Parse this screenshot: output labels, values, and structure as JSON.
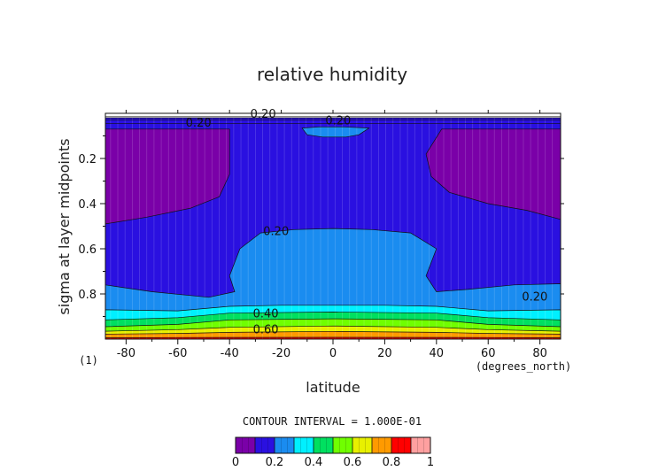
{
  "chart_data": {
    "type": "contour",
    "title": "relative humidity",
    "xlabel": "latitude",
    "ylabel": "sigma at layer midpoints",
    "xunits": "(degrees_north)",
    "yunits": "(1)",
    "xlim": [
      -88,
      88
    ],
    "ylim": [
      1.0,
      0.0
    ],
    "xticks": [
      "-80",
      "-60",
      "-40",
      "-20",
      "0",
      "20",
      "40",
      "60",
      "80"
    ],
    "xtick_values": [
      -80,
      -60,
      -40,
      -20,
      0,
      20,
      40,
      60,
      80
    ],
    "yticks": [
      "0.2",
      "0.4",
      "0.6",
      "0.8"
    ],
    "ytick_values": [
      0.2,
      0.4,
      0.6,
      0.8
    ],
    "contour_interval_text": "CONTOUR INTERVAL = 1.000E-01",
    "contour_labels": [
      {
        "text": "0.20",
        "lat": -52,
        "sigma": 0.04
      },
      {
        "text": "0.20",
        "lat": -27,
        "sigma": 0.0
      },
      {
        "text": "0.20",
        "lat": 2,
        "sigma": 0.03
      },
      {
        "text": "0.20",
        "lat": -22,
        "sigma": 0.52
      },
      {
        "text": "0.20",
        "lat": 78,
        "sigma": 0.81
      },
      {
        "text": "0.40",
        "lat": -26,
        "sigma": 0.885
      },
      {
        "text": "0.60",
        "lat": -26,
        "sigma": 0.955
      }
    ],
    "colorbar": {
      "levels": [
        0,
        0.1,
        0.2,
        0.3,
        0.4,
        0.5,
        0.6,
        0.7,
        0.8,
        0.9,
        1.0
      ],
      "colors": [
        "#7a00a8",
        "#2a10e0",
        "#1a8cf0",
        "#00f0ff",
        "#00e060",
        "#70ff00",
        "#e8f000",
        "#ff9a00",
        "#ff0000",
        "#ffa0a0"
      ],
      "tick_labels": [
        "0",
        "0.2",
        "0.4",
        "0.6",
        "0.8",
        "1"
      ],
      "tick_values": [
        0,
        0.2,
        0.4,
        0.6,
        0.8,
        1.0
      ]
    },
    "regions": [
      {
        "level": 1,
        "color": "#2a10e0",
        "poly": [
          [
            -88,
            0.02
          ],
          [
            88,
            0.02
          ],
          [
            88,
            1
          ],
          [
            -88,
            1
          ]
        ]
      },
      {
        "level": 0,
        "color": "#7a00a8",
        "poly": [
          [
            -88,
            0.07
          ],
          [
            -40,
            0.07
          ],
          [
            -40,
            0.27
          ],
          [
            -44,
            0.37
          ],
          [
            -55,
            0.42
          ],
          [
            -72,
            0.46
          ],
          [
            -88,
            0.49
          ]
        ]
      },
      {
        "level": 0,
        "color": "#7a00a8",
        "poly": [
          [
            88,
            0.07
          ],
          [
            42,
            0.07
          ],
          [
            36,
            0.18
          ],
          [
            38,
            0.28
          ],
          [
            45,
            0.35
          ],
          [
            60,
            0.4
          ],
          [
            75,
            0.43
          ],
          [
            88,
            0.47
          ]
        ]
      },
      {
        "level": 2,
        "color": "#1a8cf0",
        "poly": [
          [
            -88,
            0.76
          ],
          [
            -70,
            0.79
          ],
          [
            -48,
            0.815
          ],
          [
            -38,
            0.79
          ],
          [
            -40,
            0.72
          ],
          [
            -36,
            0.6
          ],
          [
            -28,
            0.53
          ],
          [
            -15,
            0.515
          ],
          [
            0,
            0.51
          ],
          [
            15,
            0.515
          ],
          [
            30,
            0.53
          ],
          [
            40,
            0.6
          ],
          [
            36,
            0.72
          ],
          [
            40,
            0.79
          ],
          [
            52,
            0.78
          ],
          [
            70,
            0.76
          ],
          [
            88,
            0.755
          ],
          [
            88,
            1
          ],
          [
            -88,
            1
          ]
        ]
      },
      {
        "level": 2,
        "color": "#1a8cf0",
        "poly": [
          [
            -12,
            0.065
          ],
          [
            -10,
            0.095
          ],
          [
            -4,
            0.105
          ],
          [
            5,
            0.105
          ],
          [
            10,
            0.095
          ],
          [
            14,
            0.065
          ],
          [
            4,
            0.06
          ],
          [
            -5,
            0.06
          ]
        ]
      },
      {
        "level": 3,
        "color": "#00f0ff",
        "poly": [
          [
            -88,
            0.87
          ],
          [
            -60,
            0.875
          ],
          [
            -40,
            0.855
          ],
          [
            -20,
            0.85
          ],
          [
            0,
            0.85
          ],
          [
            20,
            0.85
          ],
          [
            40,
            0.855
          ],
          [
            60,
            0.875
          ],
          [
            88,
            0.87
          ],
          [
            88,
            1
          ],
          [
            -88,
            1
          ]
        ]
      },
      {
        "level": 4,
        "color": "#00e060",
        "poly": [
          [
            -88,
            0.915
          ],
          [
            -60,
            0.905
          ],
          [
            -40,
            0.885
          ],
          [
            0,
            0.88
          ],
          [
            40,
            0.885
          ],
          [
            60,
            0.905
          ],
          [
            88,
            0.915
          ],
          [
            88,
            1
          ],
          [
            -88,
            1
          ]
        ]
      },
      {
        "level": 5,
        "color": "#70ff00",
        "poly": [
          [
            -88,
            0.945
          ],
          [
            -60,
            0.935
          ],
          [
            -40,
            0.915
          ],
          [
            0,
            0.91
          ],
          [
            40,
            0.915
          ],
          [
            60,
            0.935
          ],
          [
            88,
            0.945
          ],
          [
            88,
            1
          ],
          [
            -88,
            1
          ]
        ]
      },
      {
        "level": 6,
        "color": "#e8f000",
        "poly": [
          [
            -88,
            0.965
          ],
          [
            -60,
            0.958
          ],
          [
            -40,
            0.948
          ],
          [
            0,
            0.942
          ],
          [
            40,
            0.948
          ],
          [
            60,
            0.958
          ],
          [
            88,
            0.965
          ],
          [
            88,
            1
          ],
          [
            -88,
            1
          ]
        ]
      },
      {
        "level": 7,
        "color": "#ff9a00",
        "poly": [
          [
            -88,
            0.978
          ],
          [
            -60,
            0.975
          ],
          [
            -40,
            0.97
          ],
          [
            0,
            0.966
          ],
          [
            40,
            0.97
          ],
          [
            60,
            0.975
          ],
          [
            88,
            0.978
          ],
          [
            88,
            1
          ],
          [
            -88,
            1
          ]
        ]
      },
      {
        "level": 8,
        "color": "#ff0000",
        "poly": [
          [
            -88,
            0.994
          ],
          [
            -60,
            0.993
          ],
          [
            0,
            0.992
          ],
          [
            60,
            0.993
          ],
          [
            88,
            0.994
          ],
          [
            88,
            1
          ],
          [
            -88,
            1
          ]
        ]
      }
    ]
  }
}
